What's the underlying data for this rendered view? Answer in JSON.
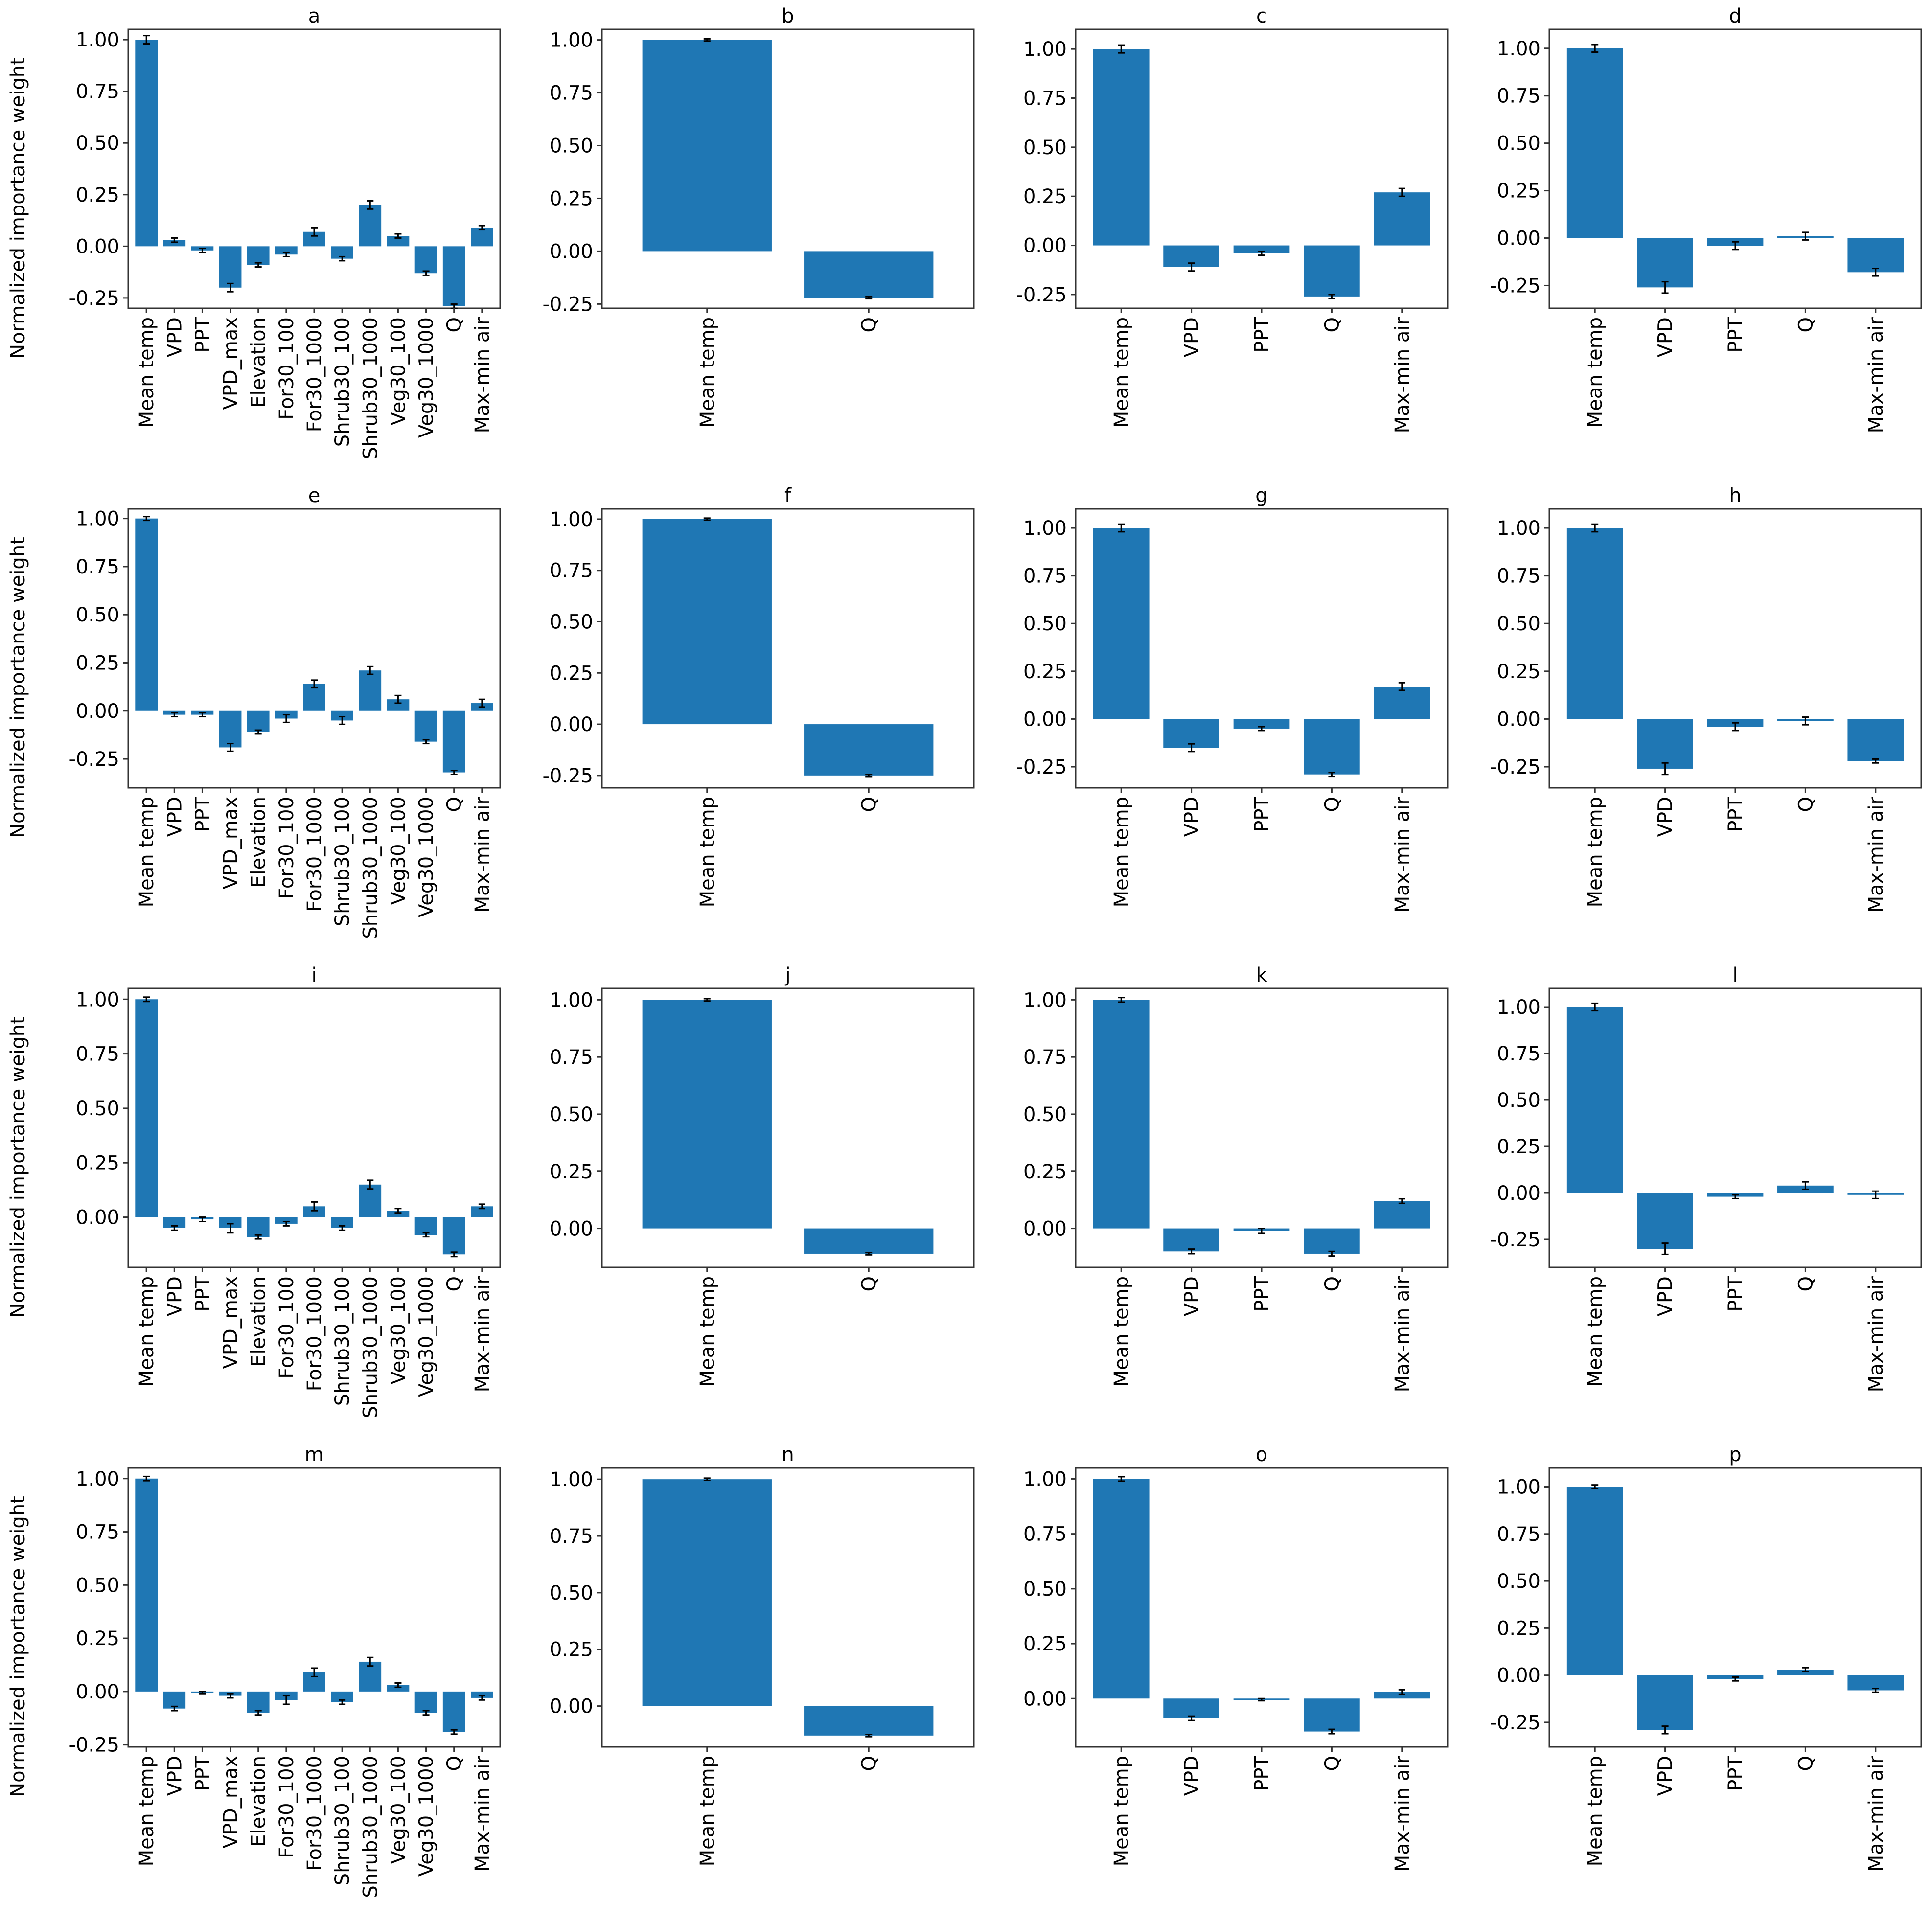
{
  "figure": {
    "ylabel": "Normalized importance weight"
  },
  "colors": {
    "bar": "#1f77b4",
    "errorbar": "#000000"
  },
  "chart_data": [
    {
      "title": "a",
      "type": "bar",
      "ylabel": "Normalized importance weight",
      "ylim": [
        -0.3,
        1.05
      ],
      "yticks": [
        "1.00",
        "0.75",
        "0.50",
        "0.25",
        "0.00",
        "-0.25"
      ],
      "categories": [
        "Mean temp",
        "VPD",
        "PPT",
        "VPD_max",
        "Elevation",
        "For30_100",
        "For30_1000",
        "Shrub30_100",
        "Shrub30_1000",
        "Veg30_100",
        "Veg30_1000",
        "Q",
        "Max-min air"
      ],
      "values": [
        1.0,
        0.03,
        -0.02,
        -0.2,
        -0.09,
        -0.04,
        0.07,
        -0.06,
        0.2,
        0.05,
        -0.13,
        -0.29,
        0.09
      ],
      "errors": [
        0.02,
        0.01,
        0.01,
        0.02,
        0.01,
        0.01,
        0.02,
        0.01,
        0.02,
        0.01,
        0.01,
        0.01,
        0.01
      ]
    },
    {
      "title": "b",
      "type": "bar",
      "ylabel": "",
      "ylim": [
        -0.27,
        1.05
      ],
      "yticks": [
        "1.00",
        "0.75",
        "0.50",
        "0.25",
        "0.00",
        "-0.25"
      ],
      "categories": [
        "Mean temp",
        "Q"
      ],
      "values": [
        1.0,
        -0.22
      ],
      "errors": [
        0.005,
        0.005
      ]
    },
    {
      "title": "c",
      "type": "bar",
      "ylabel": "",
      "ylim": [
        -0.32,
        1.1
      ],
      "yticks": [
        "1.00",
        "0.75",
        "0.50",
        "0.25",
        "0.00",
        "-0.25"
      ],
      "categories": [
        "Mean temp",
        "VPD",
        "PPT",
        "Q",
        "Max-min air"
      ],
      "values": [
        1.0,
        -0.11,
        -0.04,
        -0.26,
        0.27
      ],
      "errors": [
        0.02,
        0.02,
        0.01,
        0.01,
        0.02
      ]
    },
    {
      "title": "d",
      "type": "bar",
      "ylabel": "",
      "ylim": [
        -0.37,
        1.1
      ],
      "yticks": [
        "1.00",
        "0.75",
        "0.50",
        "0.25",
        "0.00",
        "-0.25"
      ],
      "categories": [
        "Mean temp",
        "VPD",
        "PPT",
        "Q",
        "Max-min air"
      ],
      "values": [
        1.0,
        -0.26,
        -0.04,
        0.01,
        -0.18
      ],
      "errors": [
        0.02,
        0.03,
        0.02,
        0.02,
        0.02
      ]
    },
    {
      "title": "e",
      "type": "bar",
      "ylabel": "Normalized importance weight",
      "ylim": [
        -0.4,
        1.05
      ],
      "yticks": [
        "1.00",
        "0.75",
        "0.50",
        "0.25",
        "0.00",
        "-0.25"
      ],
      "categories": [
        "Mean temp",
        "VPD",
        "PPT",
        "VPD_max",
        "Elevation",
        "For30_100",
        "For30_1000",
        "Shrub30_100",
        "Shrub30_1000",
        "Veg30_100",
        "Veg30_1000",
        "Q",
        "Max-min air"
      ],
      "values": [
        1.0,
        -0.02,
        -0.02,
        -0.19,
        -0.11,
        -0.04,
        0.14,
        -0.05,
        0.21,
        0.06,
        -0.16,
        -0.32,
        0.04
      ],
      "errors": [
        0.01,
        0.01,
        0.01,
        0.02,
        0.01,
        0.02,
        0.02,
        0.02,
        0.02,
        0.02,
        0.01,
        0.01,
        0.02
      ]
    },
    {
      "title": "f",
      "type": "bar",
      "ylabel": "",
      "ylim": [
        -0.31,
        1.05
      ],
      "yticks": [
        "1.00",
        "0.75",
        "0.50",
        "0.25",
        "0.00",
        "-0.25"
      ],
      "categories": [
        "Mean temp",
        "Q"
      ],
      "values": [
        1.0,
        -0.25
      ],
      "errors": [
        0.005,
        0.005
      ]
    },
    {
      "title": "g",
      "type": "bar",
      "ylabel": "",
      "ylim": [
        -0.36,
        1.1
      ],
      "yticks": [
        "1.00",
        "0.75",
        "0.50",
        "0.25",
        "0.00",
        "-0.25"
      ],
      "categories": [
        "Mean temp",
        "VPD",
        "PPT",
        "Q",
        "Max-min air"
      ],
      "values": [
        1.0,
        -0.15,
        -0.05,
        -0.29,
        0.17
      ],
      "errors": [
        0.02,
        0.02,
        0.01,
        0.01,
        0.02
      ]
    },
    {
      "title": "h",
      "type": "bar",
      "ylabel": "",
      "ylim": [
        -0.36,
        1.1
      ],
      "yticks": [
        "1.00",
        "0.75",
        "0.50",
        "0.25",
        "0.00",
        "-0.25"
      ],
      "categories": [
        "Mean temp",
        "VPD",
        "PPT",
        "Q",
        "Max-min air"
      ],
      "values": [
        1.0,
        -0.26,
        -0.04,
        -0.01,
        -0.22
      ],
      "errors": [
        0.02,
        0.03,
        0.02,
        0.02,
        0.01
      ]
    },
    {
      "title": "i",
      "type": "bar",
      "ylabel": "Normalized importance weight",
      "ylim": [
        -0.23,
        1.05
      ],
      "yticks": [
        "1.00",
        "0.75",
        "0.50",
        "0.25",
        "0.00"
      ],
      "categories": [
        "Mean temp",
        "VPD",
        "PPT",
        "VPD_max",
        "Elevation",
        "For30_100",
        "For30_1000",
        "Shrub30_100",
        "Shrub30_1000",
        "Veg30_100",
        "Veg30_1000",
        "Q",
        "Max-min air"
      ],
      "values": [
        1.0,
        -0.05,
        -0.01,
        -0.05,
        -0.09,
        -0.03,
        0.05,
        -0.05,
        0.15,
        0.03,
        -0.08,
        -0.17,
        0.05
      ],
      "errors": [
        0.01,
        0.01,
        0.01,
        0.02,
        0.01,
        0.01,
        0.02,
        0.01,
        0.02,
        0.01,
        0.01,
        0.01,
        0.01
      ]
    },
    {
      "title": "j",
      "type": "bar",
      "ylabel": "",
      "ylim": [
        -0.17,
        1.05
      ],
      "yticks": [
        "1.00",
        "0.75",
        "0.50",
        "0.25",
        "0.00"
      ],
      "categories": [
        "Mean temp",
        "Q"
      ],
      "values": [
        1.0,
        -0.11
      ],
      "errors": [
        0.005,
        0.005
      ]
    },
    {
      "title": "k",
      "type": "bar",
      "ylabel": "",
      "ylim": [
        -0.17,
        1.05
      ],
      "yticks": [
        "1.00",
        "0.75",
        "0.50",
        "0.25",
        "0.00"
      ],
      "categories": [
        "Mean temp",
        "VPD",
        "PPT",
        "Q",
        "Max-min air"
      ],
      "values": [
        1.0,
        -0.1,
        -0.01,
        -0.11,
        0.12
      ],
      "errors": [
        0.01,
        0.01,
        0.01,
        0.01,
        0.01
      ]
    },
    {
      "title": "l",
      "type": "bar",
      "ylabel": "",
      "ylim": [
        -0.4,
        1.1
      ],
      "yticks": [
        "1.00",
        "0.75",
        "0.50",
        "0.25",
        "0.00",
        "-0.25"
      ],
      "categories": [
        "Mean temp",
        "VPD",
        "PPT",
        "Q",
        "Max-min air"
      ],
      "values": [
        1.0,
        -0.3,
        -0.02,
        0.04,
        -0.01
      ],
      "errors": [
        0.02,
        0.03,
        0.01,
        0.02,
        0.02
      ]
    },
    {
      "title": "m",
      "type": "bar",
      "ylabel": "Normalized importance weight",
      "ylim": [
        -0.26,
        1.05
      ],
      "yticks": [
        "1.00",
        "0.75",
        "0.50",
        "0.25",
        "0.00",
        "-0.25"
      ],
      "categories": [
        "Mean temp",
        "VPD",
        "PPT",
        "VPD_max",
        "Elevation",
        "For30_100",
        "For30_1000",
        "Shrub30_100",
        "Shrub30_1000",
        "Veg30_100",
        "Veg30_1000",
        "Q",
        "Max-min air"
      ],
      "values": [
        1.0,
        -0.08,
        -0.005,
        -0.02,
        -0.1,
        -0.04,
        0.09,
        -0.05,
        0.14,
        0.03,
        -0.1,
        -0.19,
        -0.03
      ],
      "errors": [
        0.01,
        0.01,
        0.005,
        0.01,
        0.01,
        0.02,
        0.02,
        0.01,
        0.02,
        0.01,
        0.01,
        0.01,
        0.01
      ]
    },
    {
      "title": "n",
      "type": "bar",
      "ylabel": "",
      "ylim": [
        -0.18,
        1.05
      ],
      "yticks": [
        "1.00",
        "0.75",
        "0.50",
        "0.25",
        "0.00"
      ],
      "categories": [
        "Mean temp",
        "Q"
      ],
      "values": [
        1.0,
        -0.13
      ],
      "errors": [
        0.005,
        0.005
      ]
    },
    {
      "title": "o",
      "type": "bar",
      "ylabel": "",
      "ylim": [
        -0.22,
        1.05
      ],
      "yticks": [
        "1.00",
        "0.75",
        "0.50",
        "0.25",
        "0.00"
      ],
      "categories": [
        "Mean temp",
        "VPD",
        "PPT",
        "Q",
        "Max-min air"
      ],
      "values": [
        1.0,
        -0.09,
        -0.005,
        -0.15,
        0.03
      ],
      "errors": [
        0.01,
        0.01,
        0.005,
        0.01,
        0.01
      ]
    },
    {
      "title": "p",
      "type": "bar",
      "ylabel": "",
      "ylim": [
        -0.38,
        1.1
      ],
      "yticks": [
        "1.00",
        "0.75",
        "0.50",
        "0.25",
        "0.00",
        "-0.25"
      ],
      "categories": [
        "Mean temp",
        "VPD",
        "PPT",
        "Q",
        "Max-min air"
      ],
      "values": [
        1.0,
        -0.29,
        -0.02,
        0.03,
        -0.08
      ],
      "errors": [
        0.01,
        0.02,
        0.01,
        0.01,
        0.01
      ]
    }
  ]
}
